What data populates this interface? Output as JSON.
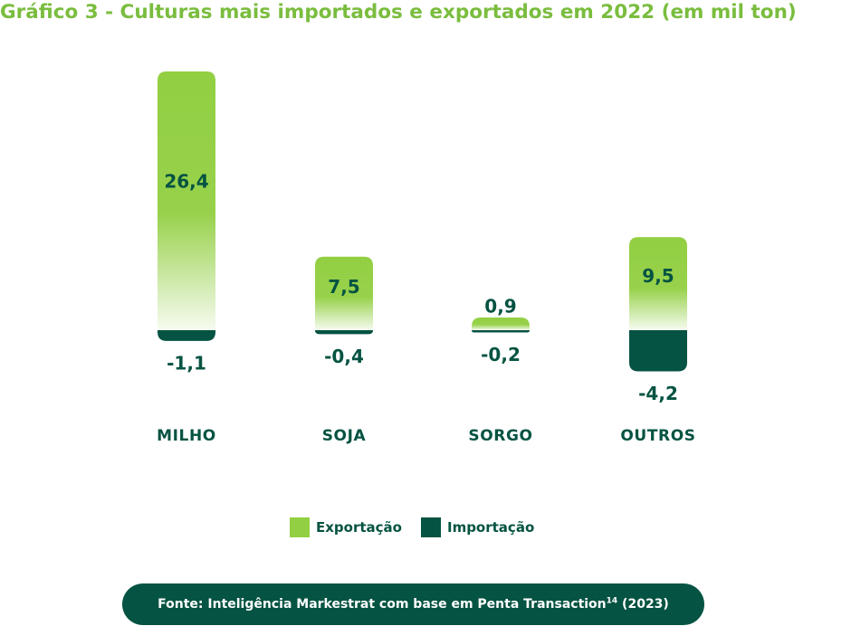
{
  "title": "Gráfico 3 - Culturas mais importados e exportados em 2022 (em mil ton)",
  "colors": {
    "title": "#7ABD3E",
    "dark_green": "#055342",
    "export_green": "#92CF42",
    "background": "#FFFFFF"
  },
  "legend": {
    "items": [
      {
        "label": "Exportação",
        "color": "#92CF42"
      },
      {
        "label": "Importação",
        "color": "#055342"
      }
    ]
  },
  "source": {
    "text": "Fonte: Inteligência Markestrat com base em Penta Transaction",
    "superscript": "14",
    "suffix": " (2023)"
  },
  "chart_data": {
    "type": "bar",
    "title": "Gráfico 3 - Culturas mais importados e exportados em 2022 (em mil ton)",
    "categories": [
      "MILHO",
      "SOJA",
      "SORGO",
      "OUTROS"
    ],
    "series": [
      {
        "name": "Exportação",
        "values": [
          26.4,
          7.5,
          0.9,
          9.5
        ],
        "labels": [
          "26,4",
          "7,5",
          "0,9",
          "9,5"
        ],
        "color": "#92CF42"
      },
      {
        "name": "Importação",
        "values": [
          -1.1,
          -0.4,
          -0.2,
          -4.2
        ],
        "labels": [
          "-1,1",
          "-0,4",
          "-0,2",
          "-4,2"
        ],
        "color": "#055342"
      }
    ],
    "ylim": [
      -4.2,
      26.4
    ],
    "grid": false,
    "legend_position": "bottom"
  }
}
